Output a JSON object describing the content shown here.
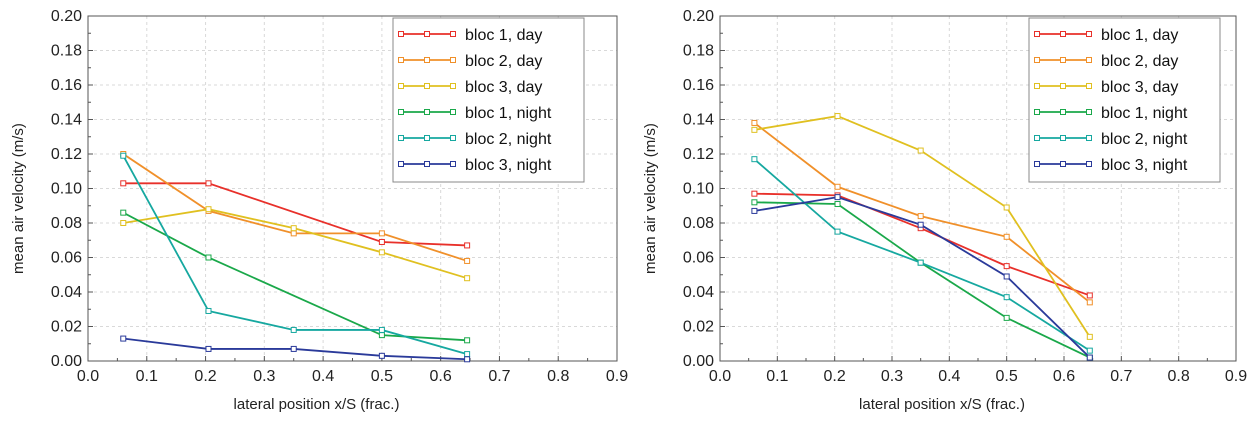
{
  "chart_data": [
    {
      "type": "line",
      "xlabel": "lateral position x/S (frac.)",
      "ylabel": "mean air velocity (m/s)",
      "xlim": [
        0.0,
        0.9
      ],
      "ylim": [
        0.0,
        0.2
      ],
      "xticks": [
        "0.0",
        "0.1",
        "0.2",
        "0.3",
        "0.4",
        "0.5",
        "0.6",
        "0.7",
        "0.8",
        "0.9"
      ],
      "yticks": [
        "0.00",
        "0.02",
        "0.04",
        "0.06",
        "0.08",
        "0.10",
        "0.12",
        "0.14",
        "0.16",
        "0.18",
        "0.20"
      ],
      "grid": true,
      "legend_position": "top-right",
      "series": [
        {
          "name": "bloc 1, day",
          "color": "#e8302a",
          "x": [
            0.06,
            0.205,
            0.5,
            0.645
          ],
          "y": [
            0.103,
            0.103,
            0.069,
            0.067
          ]
        },
        {
          "name": "bloc 2, day",
          "color": "#f0902a",
          "x": [
            0.06,
            0.205,
            0.35,
            0.5,
            0.645
          ],
          "y": [
            0.12,
            0.087,
            0.074,
            0.074,
            0.058
          ]
        },
        {
          "name": "bloc 3, day",
          "color": "#e0c020",
          "x": [
            0.06,
            0.205,
            0.35,
            0.5,
            0.645
          ],
          "y": [
            0.08,
            0.088,
            0.077,
            0.063,
            0.048
          ]
        },
        {
          "name": "bloc 1, night",
          "color": "#1aa84a",
          "x": [
            0.06,
            0.205,
            0.5,
            0.645
          ],
          "y": [
            0.086,
            0.06,
            0.015,
            0.012
          ]
        },
        {
          "name": "bloc 2, night",
          "color": "#16a8a0",
          "x": [
            0.06,
            0.205,
            0.35,
            0.5,
            0.645
          ],
          "y": [
            0.119,
            0.029,
            0.018,
            0.018,
            0.004
          ]
        },
        {
          "name": "bloc 3, night",
          "color": "#2a3a9a",
          "x": [
            0.06,
            0.205,
            0.35,
            0.5,
            0.645
          ],
          "y": [
            0.013,
            0.007,
            0.007,
            0.003,
            0.001
          ]
        }
      ]
    },
    {
      "type": "line",
      "xlabel": "lateral position x/S (frac.)",
      "ylabel": "mean air velocity (m/s)",
      "xlim": [
        0.0,
        0.9
      ],
      "ylim": [
        0.0,
        0.2
      ],
      "xticks": [
        "0.0",
        "0.1",
        "0.2",
        "0.3",
        "0.4",
        "0.5",
        "0.6",
        "0.7",
        "0.8",
        "0.9"
      ],
      "yticks": [
        "0.00",
        "0.02",
        "0.04",
        "0.06",
        "0.08",
        "0.10",
        "0.12",
        "0.14",
        "0.16",
        "0.18",
        "0.20"
      ],
      "grid": true,
      "legend_position": "top-right",
      "series": [
        {
          "name": "bloc 1, day",
          "color": "#e8302a",
          "x": [
            0.06,
            0.205,
            0.35,
            0.5,
            0.645
          ],
          "y": [
            0.097,
            0.096,
            0.077,
            0.055,
            0.038
          ]
        },
        {
          "name": "bloc 2, day",
          "color": "#f0902a",
          "x": [
            0.06,
            0.205,
            0.35,
            0.5,
            0.645
          ],
          "y": [
            0.138,
            0.101,
            0.084,
            0.072,
            0.034
          ]
        },
        {
          "name": "bloc 3, day",
          "color": "#e0c020",
          "x": [
            0.06,
            0.205,
            0.35,
            0.5,
            0.645
          ],
          "y": [
            0.134,
            0.142,
            0.122,
            0.089,
            0.014
          ]
        },
        {
          "name": "bloc 1, night",
          "color": "#1aa84a",
          "x": [
            0.06,
            0.205,
            0.35,
            0.5,
            0.645
          ],
          "y": [
            0.092,
            0.091,
            0.057,
            0.025,
            0.002
          ]
        },
        {
          "name": "bloc 2, night",
          "color": "#16a8a0",
          "x": [
            0.06,
            0.205,
            0.35,
            0.5,
            0.645
          ],
          "y": [
            0.117,
            0.075,
            0.057,
            0.037,
            0.006
          ]
        },
        {
          "name": "bloc 3, night",
          "color": "#2a3a9a",
          "x": [
            0.06,
            0.205,
            0.35,
            0.5,
            0.645
          ],
          "y": [
            0.087,
            0.095,
            0.079,
            0.049,
            0.002
          ]
        }
      ]
    }
  ]
}
